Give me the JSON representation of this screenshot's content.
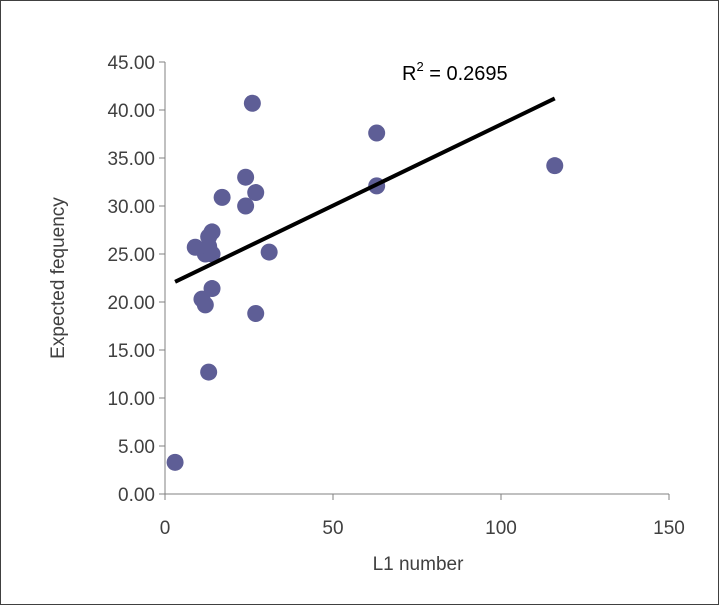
{
  "chart_data": {
    "type": "scatter",
    "title": "",
    "xlabel": "L1 number",
    "ylabel": "Expected fequency",
    "xlim": [
      0,
      150
    ],
    "ylim": [
      0,
      45
    ],
    "x_ticks": [
      "0",
      "50",
      "100",
      "150"
    ],
    "y_ticks": [
      "0.00",
      "5.00",
      "10.00",
      "15.00",
      "20.00",
      "25.00",
      "30.00",
      "35.00",
      "40.00",
      "45.00"
    ],
    "grid": false,
    "legend": "none",
    "marker_color": "#5e5e96",
    "trendline_color": "#000000",
    "points": [
      {
        "x": 3,
        "y": 3.3
      },
      {
        "x": 9,
        "y": 25.7
      },
      {
        "x": 11,
        "y": 20.3
      },
      {
        "x": 12,
        "y": 19.7
      },
      {
        "x": 12,
        "y": 25.0
      },
      {
        "x": 13,
        "y": 26.8
      },
      {
        "x": 13,
        "y": 25.8
      },
      {
        "x": 13,
        "y": 12.7
      },
      {
        "x": 14,
        "y": 27.3
      },
      {
        "x": 14,
        "y": 21.4
      },
      {
        "x": 14,
        "y": 25.0
      },
      {
        "x": 17,
        "y": 30.9
      },
      {
        "x": 24,
        "y": 33.0
      },
      {
        "x": 24,
        "y": 30.0
      },
      {
        "x": 26,
        "y": 40.7
      },
      {
        "x": 27,
        "y": 31.4
      },
      {
        "x": 27,
        "y": 18.8
      },
      {
        "x": 31,
        "y": 25.2
      },
      {
        "x": 63,
        "y": 37.6
      },
      {
        "x": 63,
        "y": 32.1
      },
      {
        "x": 116,
        "y": 34.2
      }
    ],
    "trendline": {
      "x": [
        3,
        116
      ],
      "y": [
        22.1,
        41.2
      ]
    },
    "annotation": {
      "r2_label": "R",
      "r2_sup": "2",
      "r2_value": " = 0.2695"
    }
  }
}
